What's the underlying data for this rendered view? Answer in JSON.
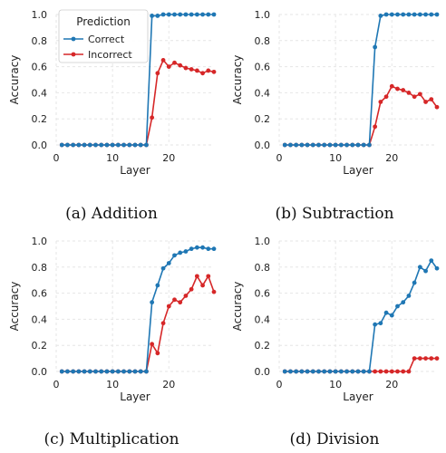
{
  "colors": {
    "correct": "#1f77b4",
    "incorrect": "#d62728"
  },
  "legend": {
    "title": "Prediction",
    "entries": [
      {
        "label": "Correct",
        "series": 0
      },
      {
        "label": "Incorrect",
        "series": 1
      }
    ]
  },
  "chart_data": [
    {
      "type": "line",
      "caption": "(a) Addition",
      "xlabel": "Layer",
      "ylabel": "Accuracy",
      "xlim": [
        0,
        28
      ],
      "ylim": [
        0,
        1
      ],
      "xticks": [
        0,
        10,
        20
      ],
      "yticks": [
        0.0,
        0.2,
        0.4,
        0.6,
        0.8,
        1.0
      ],
      "grid": true,
      "legend_position": "top-left",
      "x": [
        1,
        2,
        3,
        4,
        5,
        6,
        7,
        8,
        9,
        10,
        11,
        12,
        13,
        14,
        15,
        16,
        17,
        18,
        19,
        20,
        21,
        22,
        23,
        24,
        25,
        26,
        27,
        28
      ],
      "series": [
        {
          "name": "Correct",
          "values": [
            0,
            0,
            0,
            0,
            0,
            0,
            0,
            0,
            0,
            0,
            0,
            0,
            0,
            0,
            0,
            0,
            0.99,
            0.99,
            1.0,
            1.0,
            1.0,
            1.0,
            1.0,
            1.0,
            1.0,
            1.0,
            1.0,
            1.0
          ]
        },
        {
          "name": "Incorrect",
          "values": [
            0,
            0,
            0,
            0,
            0,
            0,
            0,
            0,
            0,
            0,
            0,
            0,
            0,
            0,
            0,
            0,
            0.21,
            0.55,
            0.65,
            0.6,
            0.63,
            0.61,
            0.59,
            0.58,
            0.57,
            0.55,
            0.57,
            0.56
          ]
        }
      ]
    },
    {
      "type": "line",
      "caption": "(b) Subtraction",
      "xlabel": "Layer",
      "ylabel": "Accuracy",
      "xlim": [
        0,
        28
      ],
      "ylim": [
        0,
        1
      ],
      "xticks": [
        0,
        10,
        20
      ],
      "yticks": [
        0.0,
        0.2,
        0.4,
        0.6,
        0.8,
        1.0
      ],
      "grid": true,
      "x": [
        1,
        2,
        3,
        4,
        5,
        6,
        7,
        8,
        9,
        10,
        11,
        12,
        13,
        14,
        15,
        16,
        17,
        18,
        19,
        20,
        21,
        22,
        23,
        24,
        25,
        26,
        27,
        28
      ],
      "series": [
        {
          "name": "Correct",
          "values": [
            0,
            0,
            0,
            0,
            0,
            0,
            0,
            0,
            0,
            0,
            0,
            0,
            0,
            0,
            0,
            0,
            0.75,
            0.99,
            1.0,
            1.0,
            1.0,
            1.0,
            1.0,
            1.0,
            1.0,
            1.0,
            1.0,
            1.0
          ]
        },
        {
          "name": "Incorrect",
          "values": [
            0,
            0,
            0,
            0,
            0,
            0,
            0,
            0,
            0,
            0,
            0,
            0,
            0,
            0,
            0,
            0,
            0.14,
            0.33,
            0.37,
            0.45,
            0.43,
            0.42,
            0.4,
            0.37,
            0.39,
            0.33,
            0.35,
            0.29
          ]
        }
      ]
    },
    {
      "type": "line",
      "caption": "(c) Multiplication",
      "xlabel": "Layer",
      "ylabel": "Accuracy",
      "xlim": [
        0,
        28
      ],
      "ylim": [
        0,
        1
      ],
      "xticks": [
        0,
        10,
        20
      ],
      "yticks": [
        0.0,
        0.2,
        0.4,
        0.6,
        0.8,
        1.0
      ],
      "grid": true,
      "x": [
        1,
        2,
        3,
        4,
        5,
        6,
        7,
        8,
        9,
        10,
        11,
        12,
        13,
        14,
        15,
        16,
        17,
        18,
        19,
        20,
        21,
        22,
        23,
        24,
        25,
        26,
        27,
        28
      ],
      "series": [
        {
          "name": "Correct",
          "values": [
            0,
            0,
            0,
            0,
            0,
            0,
            0,
            0,
            0,
            0,
            0,
            0,
            0,
            0,
            0,
            0,
            0.53,
            0.66,
            0.79,
            0.83,
            0.89,
            0.91,
            0.92,
            0.94,
            0.95,
            0.95,
            0.94,
            0.94
          ]
        },
        {
          "name": "Incorrect",
          "values": [
            0,
            0,
            0,
            0,
            0,
            0,
            0,
            0,
            0,
            0,
            0,
            0,
            0,
            0,
            0,
            0,
            0.21,
            0.14,
            0.37,
            0.5,
            0.55,
            0.53,
            0.58,
            0.63,
            0.73,
            0.66,
            0.73,
            0.61
          ]
        }
      ]
    },
    {
      "type": "line",
      "caption": "(d) Division",
      "xlabel": "Layer",
      "ylabel": "Accuracy",
      "xlim": [
        0,
        28
      ],
      "ylim": [
        0,
        1
      ],
      "xticks": [
        0,
        10,
        20
      ],
      "yticks": [
        0.0,
        0.2,
        0.4,
        0.6,
        0.8,
        1.0
      ],
      "grid": true,
      "x": [
        1,
        2,
        3,
        4,
        5,
        6,
        7,
        8,
        9,
        10,
        11,
        12,
        13,
        14,
        15,
        16,
        17,
        18,
        19,
        20,
        21,
        22,
        23,
        24,
        25,
        26,
        27,
        28
      ],
      "series": [
        {
          "name": "Correct",
          "values": [
            0,
            0,
            0,
            0,
            0,
            0,
            0,
            0,
            0,
            0,
            0,
            0,
            0,
            0,
            0,
            0,
            0.36,
            0.37,
            0.45,
            0.43,
            0.5,
            0.53,
            0.58,
            0.68,
            0.8,
            0.77,
            0.85,
            0.79
          ]
        },
        {
          "name": "Incorrect",
          "values": [
            0,
            0,
            0,
            0,
            0,
            0,
            0,
            0,
            0,
            0,
            0,
            0,
            0,
            0,
            0,
            0,
            0,
            0,
            0,
            0,
            0,
            0,
            0,
            0.1,
            0.1,
            0.1,
            0.1,
            0.1
          ]
        }
      ]
    }
  ]
}
